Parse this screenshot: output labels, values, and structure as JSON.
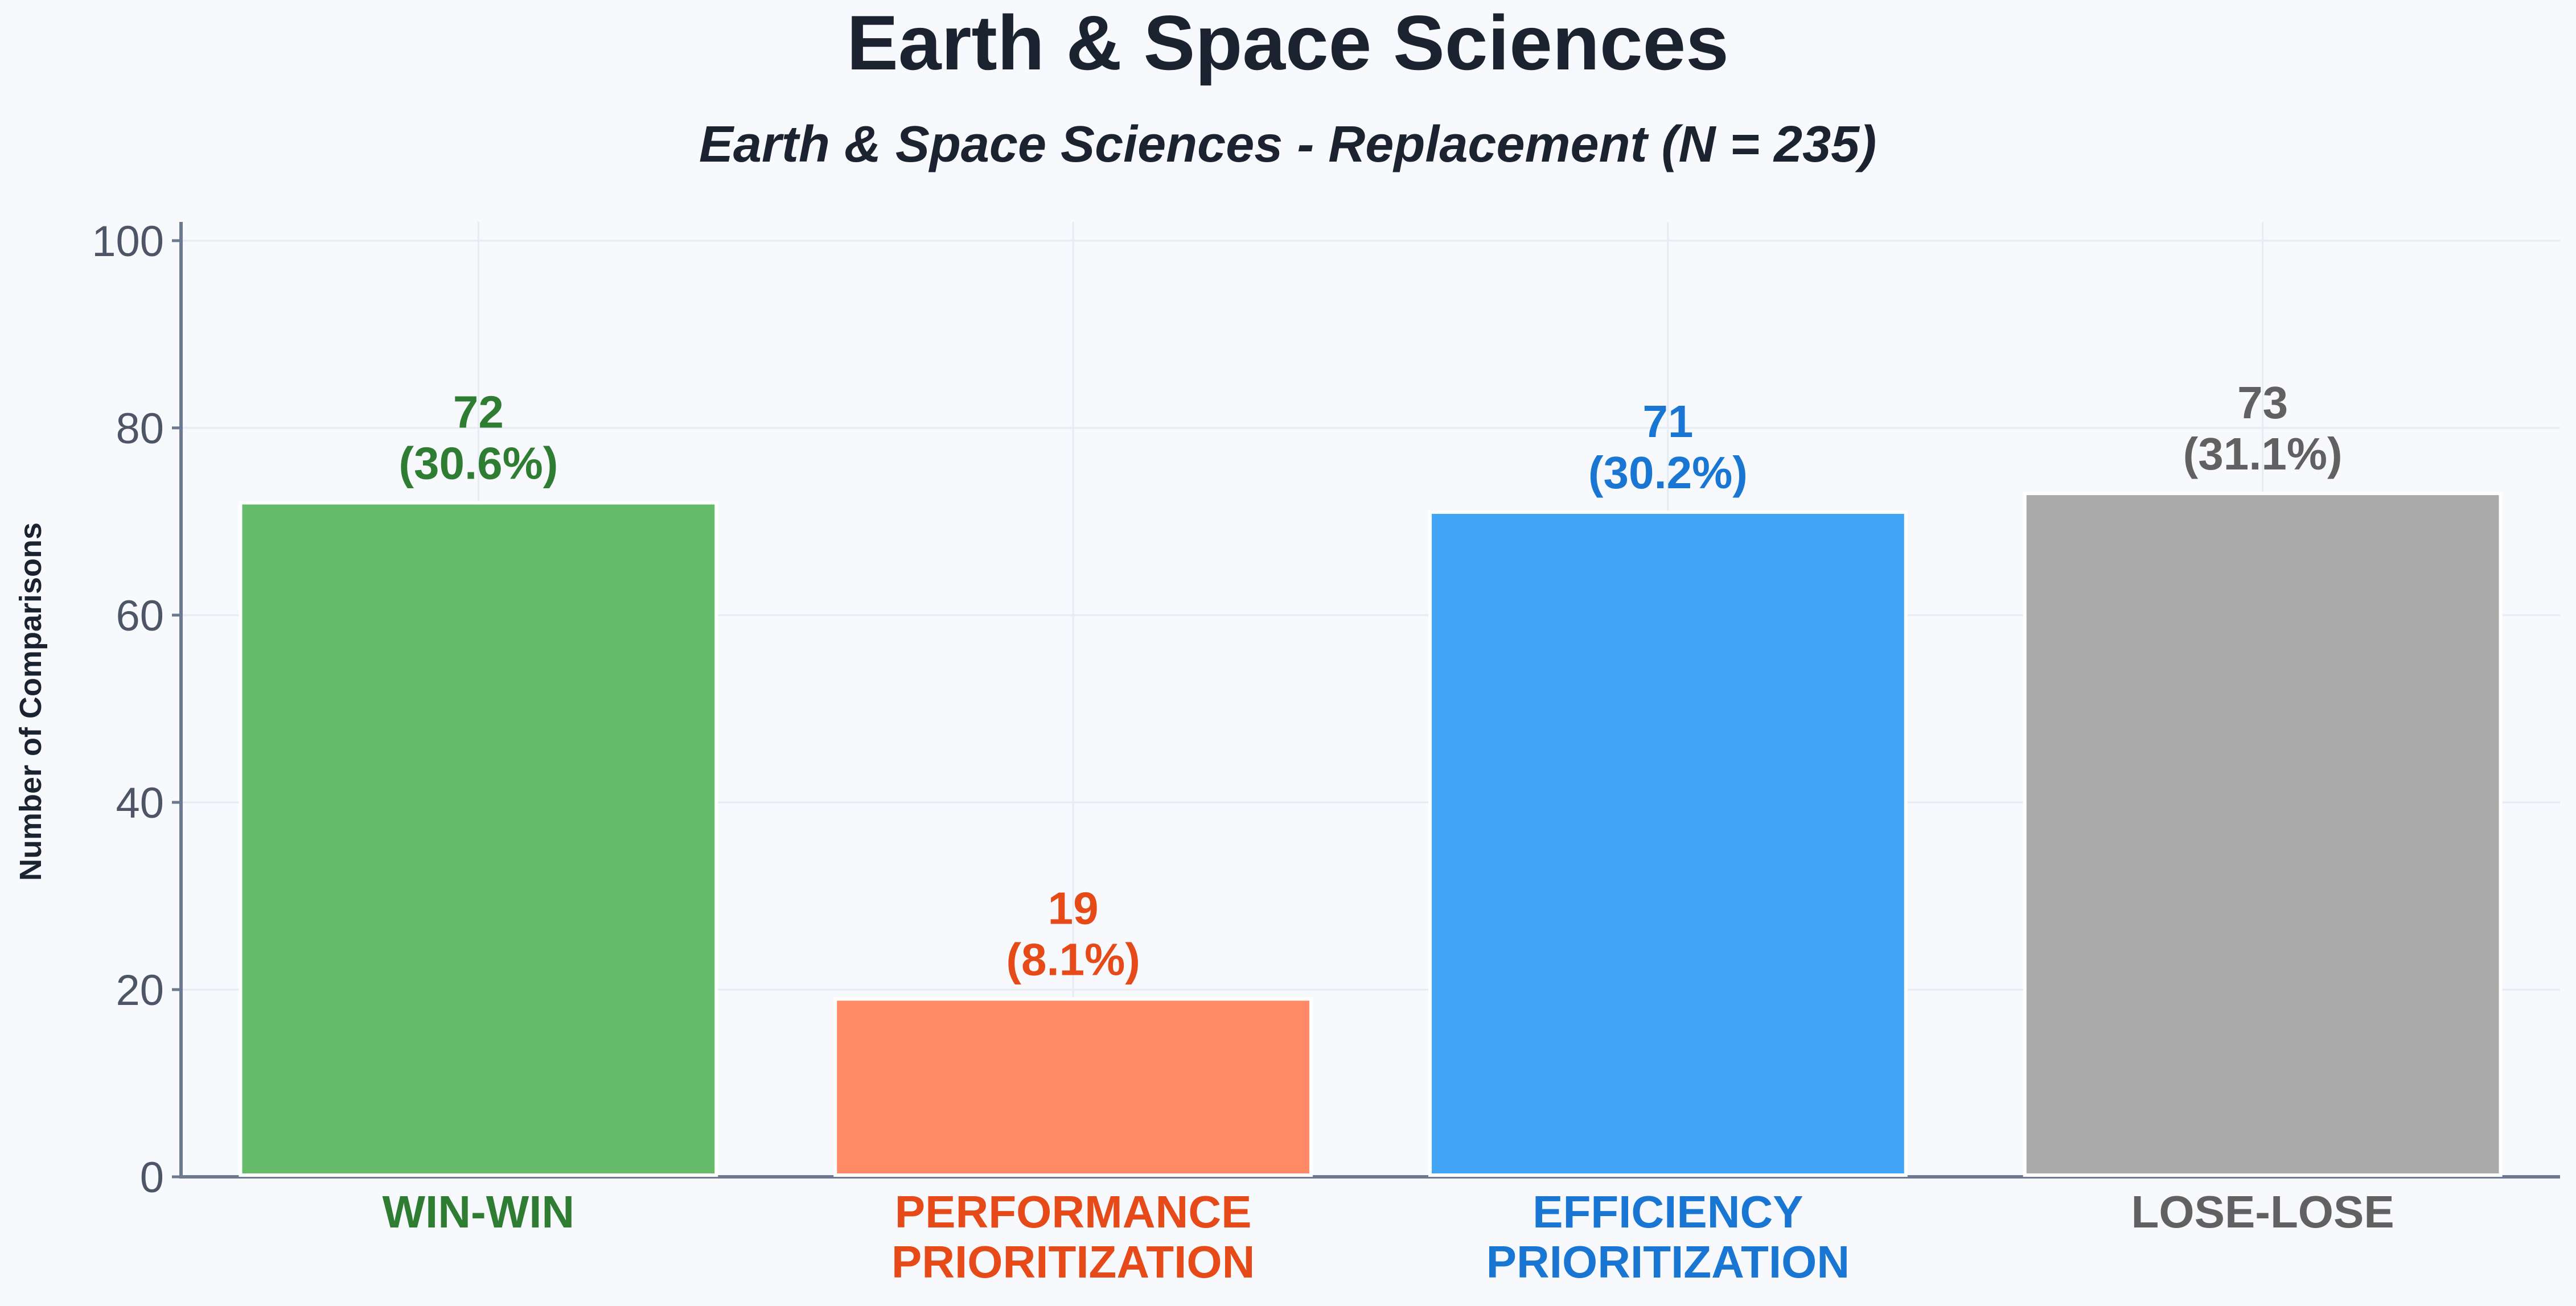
{
  "chart_data": {
    "type": "bar",
    "title": "Earth & Space Sciences",
    "subtitle": "Earth & Space Sciences - Replacement (N = 235)",
    "xlabel": "",
    "ylabel": "Number of Comparisons",
    "ylim": [
      0,
      102
    ],
    "yticks": [
      0,
      20,
      40,
      60,
      80,
      100
    ],
    "grid": true,
    "categories": [
      [
        "WIN-WIN"
      ],
      [
        "PERFORMANCE",
        "PRIORITIZATION"
      ],
      [
        "EFFICIENCY",
        "PRIORITIZATION"
      ],
      [
        "LOSE-LOSE"
      ]
    ],
    "values": [
      72,
      19,
      71,
      73
    ],
    "value_labels": [
      [
        "72",
        "(30.6%)"
      ],
      [
        "19",
        "(8.1%)"
      ],
      [
        "71",
        "(30.2%)"
      ],
      [
        "73",
        "(31.1%)"
      ]
    ],
    "bar_colors": [
      "#66bb6a",
      "#ff8a65",
      "#42a5f5",
      "#aaaaaa"
    ],
    "label_colors": [
      "#2e7d32",
      "#e64a19",
      "#1976d2",
      "#616161"
    ]
  }
}
